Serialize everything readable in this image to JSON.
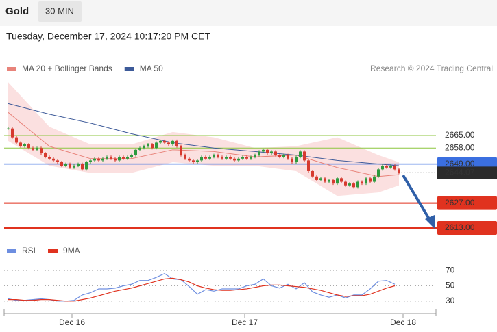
{
  "header": {
    "symbol": "Gold",
    "timeframe": "30 MIN",
    "timestamp": "Tuesday, December 17, 2024 10:17:20 PM CET",
    "credit": "Research © 2024 Trading Central"
  },
  "chart_data": [
    {
      "type": "candlestick",
      "xlim": [
        -1,
        104
      ],
      "ylim": [
        2608,
        2697
      ],
      "up_color": "#2e9a3e",
      "down_color": "#d63a2f",
      "close": [
        2669,
        2664,
        2661,
        2659,
        2660,
        2658,
        2657,
        2658,
        2655,
        2653,
        2652,
        2651,
        2650,
        2648,
        2649,
        2647,
        2648,
        2649,
        2646,
        2650,
        2651,
        2652,
        2651,
        2652,
        2653,
        2652,
        2651,
        2653,
        2652,
        2653,
        2654,
        2657,
        2658,
        2659,
        2660,
        2658,
        2661,
        2662,
        2661,
        2660,
        2662,
        2659,
        2654,
        2652,
        2651,
        2650,
        2651,
        2653,
        2652,
        2653,
        2654,
        2653,
        2652,
        2653,
        2652,
        2651,
        2652,
        2653,
        2652,
        2653,
        2654,
        2656,
        2657,
        2655,
        2656,
        2654,
        2653,
        2654,
        2652,
        2650,
        2653,
        2656,
        2651,
        2645,
        2642,
        2640,
        2641,
        2639,
        2640,
        2638,
        2641,
        2639,
        2637,
        2638,
        2636,
        2639,
        2638,
        2641,
        2639,
        2642,
        2646,
        2648,
        2647,
        2648,
        2646,
        2644.07
      ],
      "lines": [
        {
          "name": "MA 20 + Bollinger Bands",
          "color": "#e8837a",
          "band_color": "#fbe0e0",
          "x": [
            0,
            10,
            20,
            30,
            40,
            50,
            60,
            70,
            80,
            90,
            95
          ],
          "values": [
            2678,
            2659,
            2652,
            2652,
            2657,
            2656,
            2653,
            2654,
            2647,
            2642,
            2643
          ],
          "upper": [
            2695,
            2670,
            2660,
            2660,
            2667,
            2664,
            2658,
            2659,
            2664,
            2654,
            2650
          ],
          "lower": [
            2662,
            2648,
            2644,
            2644,
            2650,
            2648,
            2648,
            2645,
            2631,
            2633,
            2637
          ]
        },
        {
          "name": "MA 50",
          "color": "#3d5a99",
          "x": [
            0,
            10,
            20,
            30,
            40,
            50,
            60,
            70,
            80,
            90,
            95
          ],
          "values": [
            2683,
            2677,
            2672,
            2666,
            2661,
            2658,
            2656,
            2654,
            2651,
            2649,
            2648
          ]
        }
      ],
      "levels": [
        {
          "value": 2665,
          "label": "2665.00",
          "color": "#8cc63f",
          "boxed": false
        },
        {
          "value": 2658,
          "label": "2658.00",
          "color": "#8cc63f",
          "boxed": false
        },
        {
          "value": 2649,
          "label": "2649.00",
          "color": "#3b6fe0",
          "boxed": true
        },
        {
          "value": 2627,
          "label": "2627.00",
          "color": "#e0321f",
          "boxed": true
        },
        {
          "value": 2613,
          "label": "2613.00",
          "color": "#e0321f",
          "boxed": true
        }
      ],
      "last": {
        "value": 2644.07,
        "label": "2644.07",
        "color": "#2b2b2b"
      }
    },
    {
      "type": "line",
      "xlim": [
        -1,
        104
      ],
      "ylim": [
        20,
        80
      ],
      "yticks": [
        30,
        50,
        70
      ],
      "xticks": [
        {
          "value": 15.5,
          "label": "Dec 16"
        },
        {
          "value": 57.5,
          "label": "Dec 17"
        },
        {
          "value": 96,
          "label": "Dec 18"
        }
      ],
      "x": [
        0,
        2,
        4,
        6,
        8,
        10,
        12,
        14,
        16,
        18,
        20,
        22,
        24,
        26,
        28,
        30,
        32,
        34,
        36,
        38,
        40,
        42,
        44,
        46,
        48,
        50,
        52,
        54,
        56,
        58,
        60,
        62,
        64,
        66,
        68,
        70,
        72,
        74,
        76,
        78,
        80,
        82,
        84,
        86,
        88,
        90,
        92,
        94
      ],
      "series": [
        {
          "name": "RSI",
          "color": "#6d8ee0",
          "values": [
            33,
            31,
            31,
            32,
            33,
            32,
            30,
            30,
            31,
            38,
            41,
            46,
            46,
            47,
            50,
            52,
            57,
            57,
            61,
            66,
            59,
            58,
            49,
            39,
            45,
            43,
            46,
            46,
            46,
            50,
            52,
            59,
            50,
            47,
            52,
            46,
            54,
            42,
            38,
            35,
            38,
            34,
            38,
            38,
            46,
            56,
            57,
            52
          ]
        },
        {
          "name": "9MA",
          "color": "#e0321f",
          "values": [
            32,
            32,
            31,
            31,
            32,
            32,
            31,
            30,
            30,
            32,
            34,
            37,
            40,
            43,
            45,
            47,
            50,
            53,
            56,
            59,
            60,
            58,
            55,
            50,
            47,
            45,
            44,
            44,
            45,
            46,
            48,
            50,
            51,
            51,
            50,
            49,
            48,
            46,
            44,
            41,
            38,
            36,
            37,
            37,
            39,
            43,
            47,
            50
          ]
        }
      ]
    }
  ]
}
